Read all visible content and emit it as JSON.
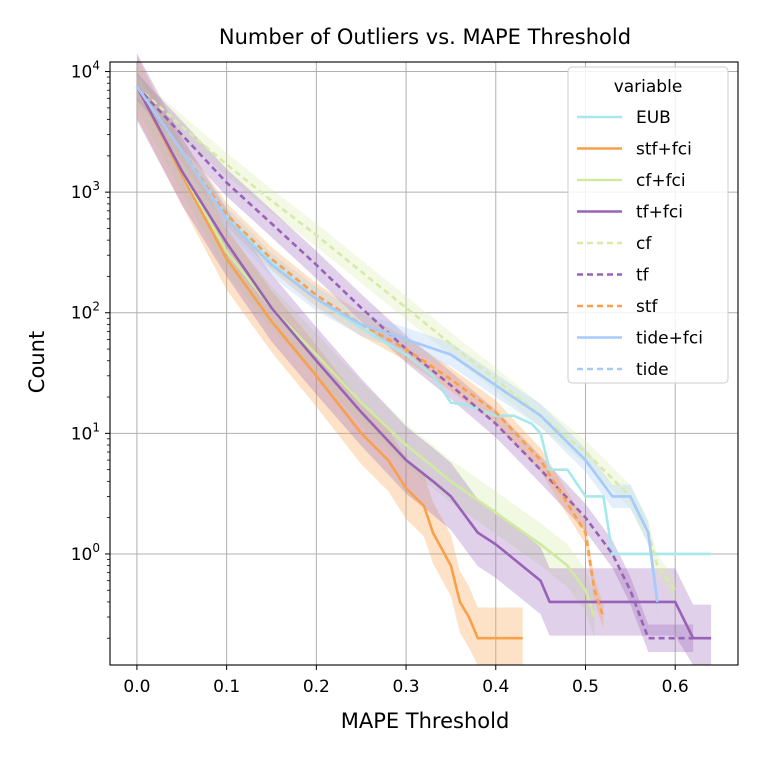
{
  "chart_data": {
    "type": "line",
    "title": "Number of Outliers vs. MAPE Threshold",
    "xlabel": "MAPE Threshold",
    "ylabel": "Count",
    "yscale": "log",
    "xlim": [
      -0.03,
      0.67
    ],
    "ylim": [
      0.12,
      12000
    ],
    "x_ticks": [
      0.0,
      0.1,
      0.2,
      0.3,
      0.4,
      0.5,
      0.6
    ],
    "x_tick_labels": [
      "0.0",
      "0.1",
      "0.2",
      "0.3",
      "0.4",
      "0.5",
      "0.6"
    ],
    "y_ticks": [
      {
        "value": 1,
        "base": "10",
        "exp": "0"
      },
      {
        "value": 10,
        "base": "10",
        "exp": "1"
      },
      {
        "value": 100,
        "base": "10",
        "exp": "2"
      },
      {
        "value": 1000,
        "base": "10",
        "exp": "3"
      },
      {
        "value": 10000,
        "base": "10",
        "exp": "4"
      }
    ],
    "grid": true,
    "legend": {
      "title": "variable",
      "placement": "top-right"
    },
    "series": [
      {
        "name": "EUB",
        "color": "#a6e8ec",
        "dash": "solid",
        "band": false,
        "x": [
          0,
          0.05,
          0.1,
          0.15,
          0.2,
          0.25,
          0.28,
          0.3,
          0.33,
          0.35,
          0.37,
          0.4,
          0.42,
          0.44,
          0.45,
          0.46,
          0.48,
          0.5,
          0.52,
          0.53,
          0.55,
          0.57,
          0.6,
          0.64
        ],
        "y": [
          7500,
          2200,
          620,
          260,
          130,
          75,
          55,
          45,
          30,
          18,
          17,
          14,
          14,
          12,
          10,
          5,
          5,
          3,
          3,
          1,
          1,
          1,
          1,
          1
        ]
      },
      {
        "name": "stf+fci",
        "color": "#f8a04a",
        "dash": "solid",
        "band": true,
        "band_factor": 1.8,
        "x": [
          0,
          0.05,
          0.1,
          0.15,
          0.2,
          0.25,
          0.28,
          0.3,
          0.32,
          0.33,
          0.35,
          0.36,
          0.37,
          0.38,
          0.39,
          0.4,
          0.43
        ],
        "y": [
          7500,
          1400,
          280,
          85,
          30,
          10,
          6,
          3.5,
          2.5,
          1.5,
          0.8,
          0.4,
          0.3,
          0.2,
          0.2,
          0.2,
          0.2
        ]
      },
      {
        "name": "cf+fci",
        "color": "#d0ea9f",
        "dash": "solid",
        "band": true,
        "band_factor": 1.5,
        "x": [
          0,
          0.05,
          0.1,
          0.15,
          0.2,
          0.25,
          0.3,
          0.35,
          0.4,
          0.45,
          0.48,
          0.5,
          0.51
        ],
        "y": [
          7500,
          1500,
          320,
          110,
          45,
          18,
          8,
          4,
          2.2,
          1.2,
          0.8,
          0.5,
          0.3
        ]
      },
      {
        "name": "tf+fci",
        "color": "#9862b8",
        "dash": "solid",
        "band": true,
        "band_factor": 1.9,
        "x": [
          0,
          0.05,
          0.1,
          0.15,
          0.2,
          0.25,
          0.3,
          0.33,
          0.35,
          0.38,
          0.4,
          0.45,
          0.46,
          0.6,
          0.62,
          0.64
        ],
        "y": [
          7500,
          1500,
          380,
          110,
          40,
          15,
          6,
          4,
          3,
          1.5,
          1.2,
          0.6,
          0.4,
          0.4,
          0.2,
          0.2
        ]
      },
      {
        "name": "cf",
        "color": "#d8eaa8",
        "dash": "dashed",
        "band": true,
        "band_factor": 1.25,
        "x": [
          0,
          0.05,
          0.1,
          0.15,
          0.2,
          0.25,
          0.3,
          0.35,
          0.4,
          0.45,
          0.5,
          0.55,
          0.57,
          0.58,
          0.6
        ],
        "y": [
          7500,
          3500,
          1700,
          850,
          440,
          220,
          110,
          55,
          28,
          14,
          7,
          3,
          1.5,
          0.8,
          0.5
        ]
      },
      {
        "name": "tf",
        "color": "#9862b8",
        "dash": "dashed",
        "band": true,
        "band_factor": 1.3,
        "x": [
          0,
          0.05,
          0.1,
          0.15,
          0.2,
          0.25,
          0.3,
          0.35,
          0.4,
          0.45,
          0.5,
          0.53,
          0.55,
          0.57,
          0.6,
          0.62
        ],
        "y": [
          7500,
          3000,
          1200,
          550,
          250,
          110,
          50,
          25,
          12,
          5,
          2,
          1,
          0.5,
          0.2,
          0.2,
          0.2
        ]
      },
      {
        "name": "stf",
        "color": "#f8a04a",
        "dash": "dashed",
        "band": true,
        "band_factor": 1.25,
        "x": [
          0,
          0.05,
          0.1,
          0.15,
          0.2,
          0.25,
          0.3,
          0.35,
          0.4,
          0.45,
          0.5,
          0.51,
          0.52
        ],
        "y": [
          7500,
          2200,
          650,
          280,
          140,
          80,
          50,
          28,
          15,
          6,
          1.5,
          0.5,
          0.3
        ]
      },
      {
        "name": "tide+fci",
        "color": "#a7cbf8",
        "dash": "solid",
        "band": true,
        "band_factor": 1.25,
        "x": [
          0,
          0.05,
          0.1,
          0.15,
          0.2,
          0.25,
          0.3,
          0.35,
          0.4,
          0.45,
          0.5,
          0.53,
          0.55,
          0.57,
          0.58
        ],
        "y": [
          7500,
          2200,
          600,
          250,
          130,
          80,
          60,
          45,
          25,
          14,
          6,
          3,
          3,
          1.5,
          0.4
        ]
      },
      {
        "name": "tide",
        "color": "#a7cbf8",
        "dash": "dashed",
        "band": false,
        "x": [
          0,
          0.05,
          0.1,
          0.15,
          0.2,
          0.25,
          0.3,
          0.35,
          0.4,
          0.45,
          0.5,
          0.53,
          0.55,
          0.57,
          0.58
        ],
        "y": [
          7500,
          2200,
          600,
          250,
          130,
          80,
          60,
          45,
          25,
          14,
          6,
          3,
          3,
          1.5,
          0.4
        ]
      }
    ]
  }
}
